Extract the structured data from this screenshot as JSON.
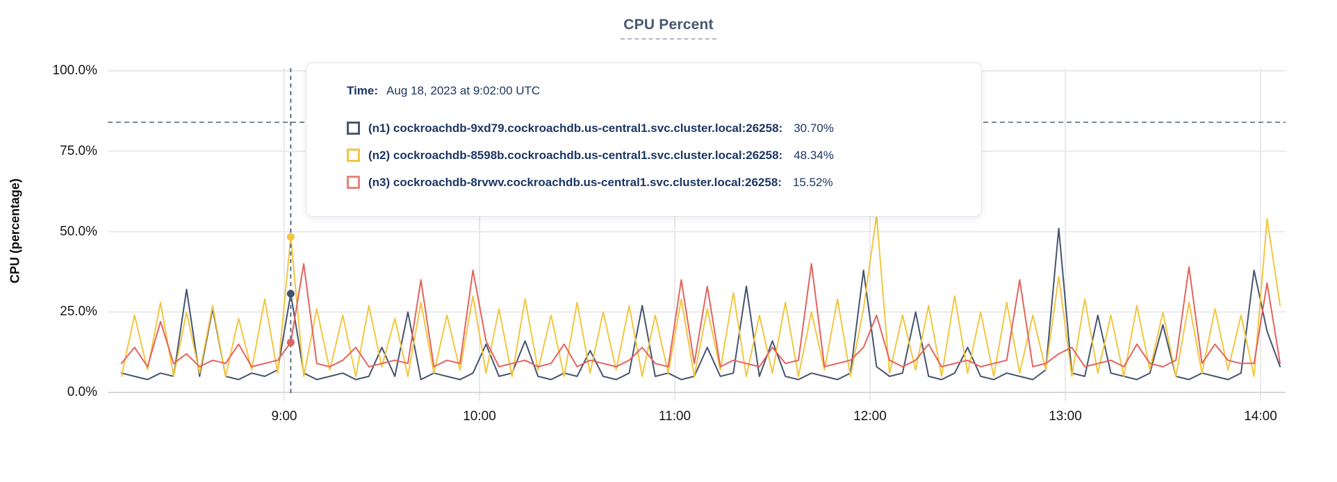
{
  "page": {
    "background": "#ffffff"
  },
  "chart": {
    "title": "CPU Percent",
    "y_axis_title": "CPU (percentage)",
    "tooltip": {
      "time_label": "Time:",
      "time_value": "Aug 18, 2023 at 9:02:00 UTC",
      "rows": [
        {
          "label": "(n1) cockroachdb-9xd79.cockroachdb.us-central1.svc.cluster.local:26258:",
          "value": "30.70%",
          "swatch_color": "#475872"
        },
        {
          "label": "(n2) cockroachdb-8598b.cockroachdb.us-central1.svc.cluster.local:26258:",
          "value": "48.34%",
          "swatch_color": "#f2c63f"
        },
        {
          "label": "(n3) cockroachdb-8rvwv.cockroachdb.us-central1.svc.cluster.local:26258:",
          "value": "15.52%",
          "swatch_color": "#e8837b"
        }
      ]
    },
    "colors": {
      "title": "#475872",
      "grid": "#e9e9e9",
      "axis": "#d7d7d7",
      "dashed_guides": "#5a6e80",
      "tooltip_text": "#1c3664"
    }
  },
  "chart_data": {
    "type": "line",
    "title": "CPU Percent",
    "xlabel": "",
    "ylabel": "CPU (percentage)",
    "ylim": [
      0,
      100
    ],
    "ytick_labels": [
      "0.0%",
      "25.0%",
      "50.0%",
      "75.0%",
      "100.0%"
    ],
    "ytick_values": [
      0,
      25,
      50,
      75,
      100
    ],
    "xticks": [
      {
        "label": "9:00",
        "minute": 540
      },
      {
        "label": "10:00",
        "minute": 600
      },
      {
        "label": "11:00",
        "minute": 660
      },
      {
        "label": "12:00",
        "minute": 720
      },
      {
        "label": "13:00",
        "minute": 780
      },
      {
        "label": "14:00",
        "minute": 840
      }
    ],
    "x_start_minute": 490,
    "x_step_minutes": 4,
    "grid": true,
    "legend_position": "tooltip",
    "threshold_value": 84,
    "selected": {
      "minute": 542,
      "index": 13,
      "time_text": "Aug 18, 2023 at 9:02:00 UTC"
    },
    "series": [
      {
        "name": "(n1) cockroachdb-9xd79.cockroachdb.us-central1.svc.cluster.local:26258",
        "color": "#44536e",
        "selected_value": 30.7,
        "values": [
          6,
          5,
          4,
          6,
          5,
          32,
          5,
          26,
          5,
          4,
          6,
          5,
          7,
          30.7,
          6,
          4,
          5,
          6,
          4,
          5,
          14,
          5,
          25,
          4,
          6,
          5,
          4,
          6,
          15,
          5,
          6,
          16,
          5,
          4,
          6,
          5,
          13,
          5,
          4,
          6,
          27,
          5,
          6,
          4,
          5,
          14,
          5,
          6,
          33,
          5,
          16,
          5,
          4,
          6,
          5,
          4,
          6,
          38,
          8,
          5,
          6,
          25,
          5,
          4,
          6,
          14,
          5,
          4,
          6,
          5,
          4,
          7,
          51,
          6,
          5,
          24,
          6,
          5,
          4,
          6,
          21,
          5,
          4,
          6,
          5,
          4,
          6,
          38,
          19,
          8
        ]
      },
      {
        "name": "(n2) cockroachdb-8598b.cockroachdb.us-central1.svc.cluster.local:26258",
        "color": "#f2c63f",
        "selected_value": 48.34,
        "values": [
          5,
          24,
          7,
          28,
          5,
          25,
          6,
          27,
          5,
          23,
          7,
          29,
          6,
          48.34,
          5,
          26,
          7,
          24,
          5,
          27,
          8,
          23,
          5,
          28,
          6,
          24,
          7,
          30,
          6,
          26,
          5,
          29,
          7,
          24,
          5,
          28,
          6,
          25,
          7,
          27,
          5,
          24,
          6,
          29,
          5,
          26,
          7,
          31,
          5,
          24,
          6,
          28,
          5,
          25,
          7,
          29,
          5,
          26,
          55,
          6,
          24,
          7,
          27,
          5,
          30,
          6,
          25,
          5,
          28,
          6,
          24,
          7,
          36,
          5,
          29,
          6,
          24,
          5,
          27,
          7,
          25,
          5,
          28,
          6,
          26,
          7,
          24,
          5,
          54,
          27
        ]
      },
      {
        "name": "(n3) cockroachdb-8rvwv.cockroachdb.us-central1.svc.cluster.local:26258",
        "color": "#e4625c",
        "selected_value": 15.52,
        "values": [
          9,
          14,
          8,
          22,
          9,
          12,
          8,
          10,
          9,
          15,
          8,
          9,
          10,
          15.52,
          40,
          9,
          8,
          10,
          14,
          8,
          9,
          10,
          9,
          35,
          8,
          10,
          9,
          38,
          16,
          8,
          9,
          10,
          8,
          9,
          15,
          8,
          10,
          9,
          8,
          10,
          14,
          9,
          8,
          35,
          9,
          33,
          8,
          10,
          9,
          8,
          14,
          9,
          10,
          40,
          8,
          9,
          10,
          14,
          24,
          10,
          8,
          10,
          15,
          8,
          9,
          10,
          8,
          9,
          10,
          35,
          8,
          9,
          12,
          14,
          8,
          9,
          10,
          8,
          15,
          9,
          8,
          10,
          39,
          9,
          15,
          10,
          9,
          9,
          34,
          9
        ]
      }
    ]
  }
}
